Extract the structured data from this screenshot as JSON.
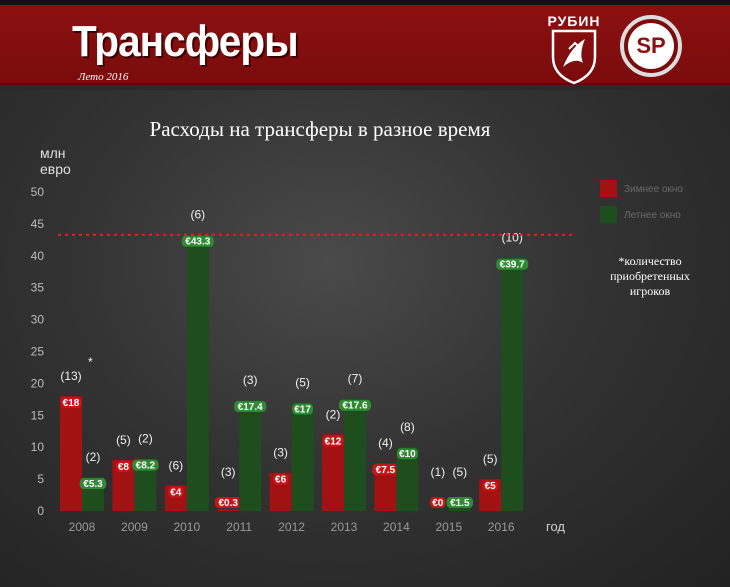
{
  "header": {
    "title": "Трансферы",
    "subtitle": "Лето 2016",
    "club_name": "РУБИН",
    "sp_logo": "SP"
  },
  "colors": {
    "banner": "#8c1010",
    "winter": "#a31212",
    "summer": "#1e4d1e",
    "reference_line": "#e0221a"
  },
  "chart_data": {
    "type": "bar",
    "title": "Расходы на трансферы в разное время",
    "ylabel_lines": [
      "млн",
      "евро"
    ],
    "xlabel": "год",
    "ylim": [
      0,
      50
    ],
    "yticks": [
      0,
      5,
      10,
      15,
      20,
      25,
      30,
      35,
      40,
      45,
      50
    ],
    "grid": false,
    "reference_line": 43.3,
    "categories": [
      "2008",
      "2009",
      "2010",
      "2011",
      "2012",
      "2013",
      "2014",
      "2015",
      "2016"
    ],
    "series": [
      {
        "name": "Зимнее окно",
        "values": [
          18,
          8,
          4,
          0.3,
          6,
          12,
          7.5,
          0,
          5
        ],
        "labels": [
          "€18",
          "€8",
          "€4",
          "€0.3",
          "€6",
          "€12",
          "€7.5",
          "€0",
          "€5"
        ],
        "counts": [
          "(13)",
          "(5)",
          "(6)",
          "(3)",
          "(3)",
          "(2)",
          "(4)",
          "(1)",
          "(5)"
        ]
      },
      {
        "name": "Летнее окно",
        "values": [
          5.3,
          8.2,
          43.3,
          17.4,
          17,
          17.6,
          10,
          1.5,
          39.7
        ],
        "labels": [
          "€5.3",
          "€8.2",
          "€43.3",
          "€17.4",
          "€17",
          "€17.6",
          "€10",
          "€1.5",
          "€39.7"
        ],
        "counts": [
          "(2)",
          "(2)",
          "(6)",
          "(3)",
          "(5)",
          "(7)",
          "(8)",
          "(5)",
          "(10)"
        ]
      }
    ],
    "legend_position": "right",
    "note_marker": "*",
    "note": [
      "*количество",
      "приобретенных",
      "игроков"
    ]
  }
}
